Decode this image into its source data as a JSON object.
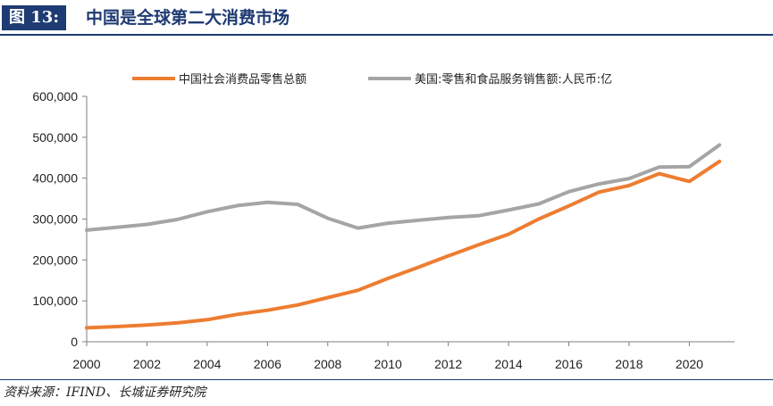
{
  "header": {
    "figure_label": "图 13:",
    "title": "中国是全球第二大消费市场"
  },
  "footer": {
    "source": "资料来源：IFIND、长城证券研究院"
  },
  "colors": {
    "china": "#ed7d31",
    "usa": "#a5a5a5",
    "brand": "#1f3b73"
  },
  "chart_data": {
    "type": "line",
    "title": "",
    "xlabel": "",
    "ylabel": "",
    "ylim": [
      0,
      600000
    ],
    "xlim": [
      2000,
      2021.5
    ],
    "grid": false,
    "legend_position": "top",
    "y_ticks": [
      "0",
      "100,000",
      "200,000",
      "300,000",
      "400,000",
      "500,000",
      "600,000"
    ],
    "x_ticks": [
      "2000",
      "2002",
      "2004",
      "2006",
      "2008",
      "2010",
      "2012",
      "2014",
      "2016",
      "2018",
      "2020"
    ],
    "x": [
      2000,
      2001,
      2002,
      2003,
      2004,
      2005,
      2006,
      2007,
      2008,
      2009,
      2010,
      2011,
      2012,
      2013,
      2014,
      2015,
      2016,
      2017,
      2018,
      2019,
      2020,
      2021
    ],
    "series": [
      {
        "name": "中国社会消费品零售总额",
        "color_key": "china",
        "values": [
          34000,
          37000,
          41000,
          46000,
          54000,
          67000,
          77000,
          90000,
          108000,
          126000,
          155000,
          182000,
          210000,
          237000,
          263000,
          300000,
          332000,
          366000,
          382000,
          411000,
          392000,
          441000
        ]
      },
      {
        "name": "美国:零售和食品服务销售额:人民币:亿",
        "color_key": "usa",
        "values": [
          273000,
          280000,
          287000,
          299000,
          318000,
          333000,
          341000,
          336000,
          302000,
          278000,
          290000,
          297000,
          304000,
          308000,
          322000,
          337000,
          367000,
          386000,
          399000,
          427000,
          428000,
          481000
        ]
      }
    ]
  }
}
